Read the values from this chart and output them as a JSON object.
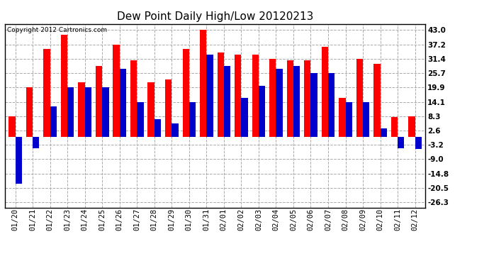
{
  "title": "Dew Point Daily High/Low 20120213",
  "copyright": "Copyright 2012 Cartronics.com",
  "labels": [
    "01/20",
    "01/21",
    "01/22",
    "01/23",
    "01/24",
    "01/25",
    "01/26",
    "01/27",
    "01/28",
    "01/29",
    "01/30",
    "01/31",
    "02/01",
    "02/02",
    "02/03",
    "02/04",
    "02/05",
    "02/06",
    "02/07",
    "02/08",
    "02/09",
    "02/10",
    "02/11",
    "02/12"
  ],
  "highs": [
    8.3,
    19.9,
    35.4,
    41.0,
    22.1,
    28.6,
    37.2,
    30.8,
    22.1,
    23.2,
    35.4,
    43.0,
    34.0,
    33.2,
    33.2,
    31.4,
    30.8,
    30.8,
    36.4,
    15.8,
    31.4,
    29.3,
    7.9,
    8.3
  ],
  "lows": [
    -19.0,
    -4.5,
    12.2,
    19.9,
    19.9,
    19.9,
    27.5,
    14.1,
    7.0,
    5.5,
    14.1,
    33.2,
    28.6,
    15.8,
    20.5,
    27.5,
    28.6,
    25.7,
    25.7,
    14.1,
    14.1,
    3.5,
    -4.5,
    -5.0
  ],
  "high_color": "#ff0000",
  "low_color": "#0000cc",
  "background_color": "#ffffff",
  "plot_background": "#ffffff",
  "grid_color": "#aaaaaa",
  "yticks": [
    43.0,
    37.2,
    31.4,
    25.7,
    19.9,
    14.1,
    8.3,
    2.6,
    -3.2,
    -9.0,
    -14.8,
    -20.5,
    -26.3
  ],
  "ylim": [
    -28.5,
    45.5
  ],
  "title_fontsize": 11,
  "tick_fontsize": 7.5,
  "copyright_fontsize": 6.5
}
